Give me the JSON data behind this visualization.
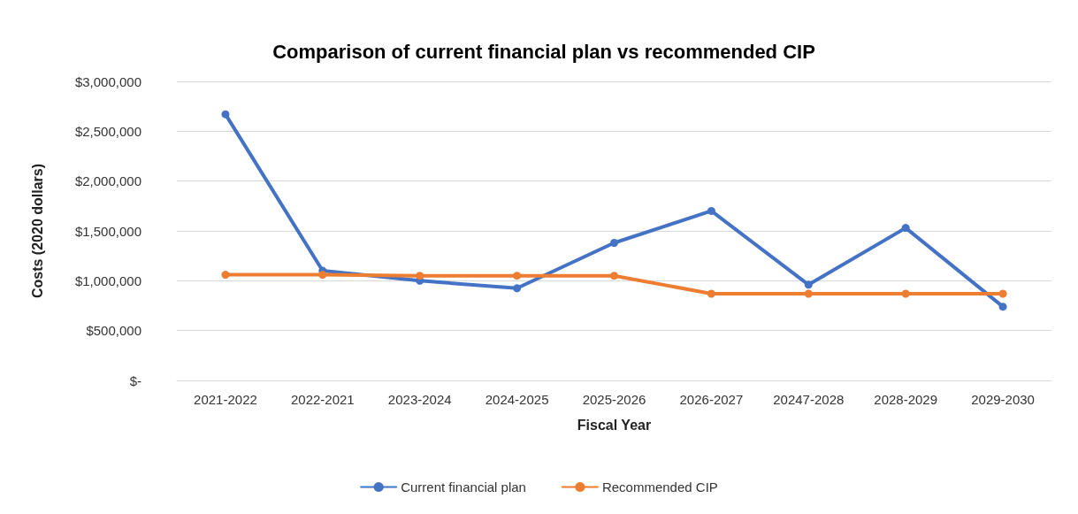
{
  "chart_data": {
    "type": "line",
    "title": "Comparison of current financial plan vs recommended CIP",
    "xlabel": "Fiscal Year",
    "ylabel": "Costs (2020 dollars)",
    "categories": [
      "2021-2022",
      "2022-2021",
      "2023-2024",
      "2024-2025",
      "2025-2026",
      "2026-2027",
      "20247-2028",
      "2028-2029",
      "2029-2030"
    ],
    "series": [
      {
        "name": "Current financial plan",
        "color": "#4472c4",
        "values": [
          2670000,
          1100000,
          1000000,
          925000,
          1380000,
          1700000,
          960000,
          1530000,
          740000
        ]
      },
      {
        "name": "Recommended CIP",
        "color": "#ed7d31",
        "values": [
          1060000,
          1060000,
          1050000,
          1050000,
          1050000,
          870000,
          870000,
          870000,
          870000
        ]
      }
    ],
    "ylim": [
      0,
      3000000
    ],
    "yticks": [
      {
        "value": 0,
        "label": "$-"
      },
      {
        "value": 500000,
        "label": "$500,000"
      },
      {
        "value": 1000000,
        "label": "$1,000,000"
      },
      {
        "value": 1500000,
        "label": "$1,500,000"
      },
      {
        "value": 2000000,
        "label": "$2,000,000"
      },
      {
        "value": 2500000,
        "label": "$2,500,000"
      },
      {
        "value": 3000000,
        "label": "$3,000,000"
      }
    ],
    "grid": "y",
    "legend": "bottom",
    "marker": "circle",
    "line_style": "solid"
  }
}
